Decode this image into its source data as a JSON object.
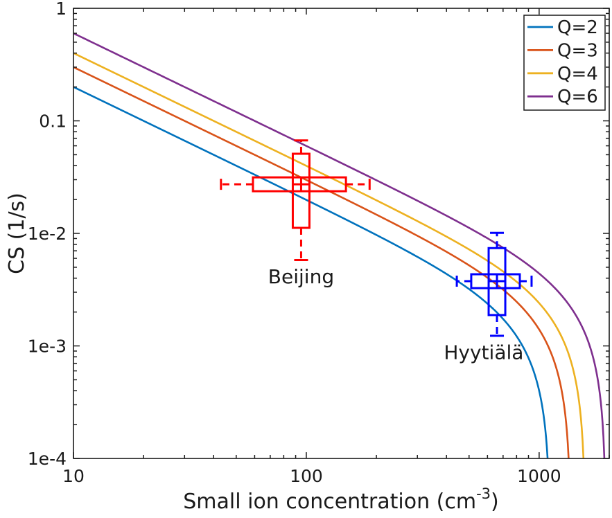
{
  "chart_data": {
    "type": "line",
    "title": "",
    "xlabel": {
      "text": "Small ion concentration (cm",
      "sup": "-3",
      "close": ")"
    },
    "ylabel": "CS (1/s)",
    "xscale": "log",
    "yscale": "log",
    "xlim": [
      10,
      2000
    ],
    "ylim": [
      0.0001,
      1
    ],
    "grid": false,
    "x_major_ticks": [
      {
        "value": 10,
        "label": "10"
      },
      {
        "value": 100,
        "label": "100"
      },
      {
        "value": 1000,
        "label": "1000"
      }
    ],
    "y_major_ticks": [
      {
        "value": 1,
        "label": "1"
      },
      {
        "value": 0.1,
        "label": "0.1"
      },
      {
        "value": 0.01,
        "label": "1e-2"
      },
      {
        "value": 0.001,
        "label": "1e-3"
      },
      {
        "value": 0.0001,
        "label": "1e-4"
      }
    ],
    "minor_ticks": true,
    "model": {
      "formula": "CS = Q/n - alpha*n (steady-state small-ion balance)",
      "alpha": 1.6e-06
    },
    "series": [
      {
        "name": "Q=2",
        "Q": 2,
        "color": "#0072BD"
      },
      {
        "name": "Q=3",
        "Q": 3,
        "color": "#D95319"
      },
      {
        "name": "Q=4",
        "Q": 4,
        "color": "#EDB120"
      },
      {
        "name": "Q=6",
        "Q": 6,
        "color": "#7E2F8E"
      }
    ],
    "legend": {
      "position": "northeast",
      "entries": [
        "Q=2",
        "Q=3",
        "Q=4",
        "Q=6"
      ]
    },
    "boxplots": [
      {
        "name": "Beijing",
        "color": "#FF0000",
        "ion_concentration": {
          "whisker_low": 43,
          "q1": 59,
          "median": 95,
          "q3": 148,
          "whisker_high": 187
        },
        "cs": {
          "whisker_low": 0.0058,
          "q1": 0.0112,
          "median": 0.0273,
          "q3": 0.051,
          "whisker_high": 0.067
        },
        "label": {
          "text": "Beijing",
          "x": 95,
          "y": 0.00415
        }
      },
      {
        "name": "Hyytiälä",
        "color": "#0000FF",
        "ion_concentration": {
          "whisker_low": 443,
          "q1": 511,
          "median": 659,
          "q3": 826,
          "whisker_high": 928
        },
        "cs": {
          "whisker_low": 0.00123,
          "q1": 0.00188,
          "median": 0.00376,
          "q3": 0.0074,
          "whisker_high": 0.0101
        },
        "label": {
          "text": "Hyytiälä",
          "x": 578,
          "y": 0.00088
        }
      }
    ]
  }
}
